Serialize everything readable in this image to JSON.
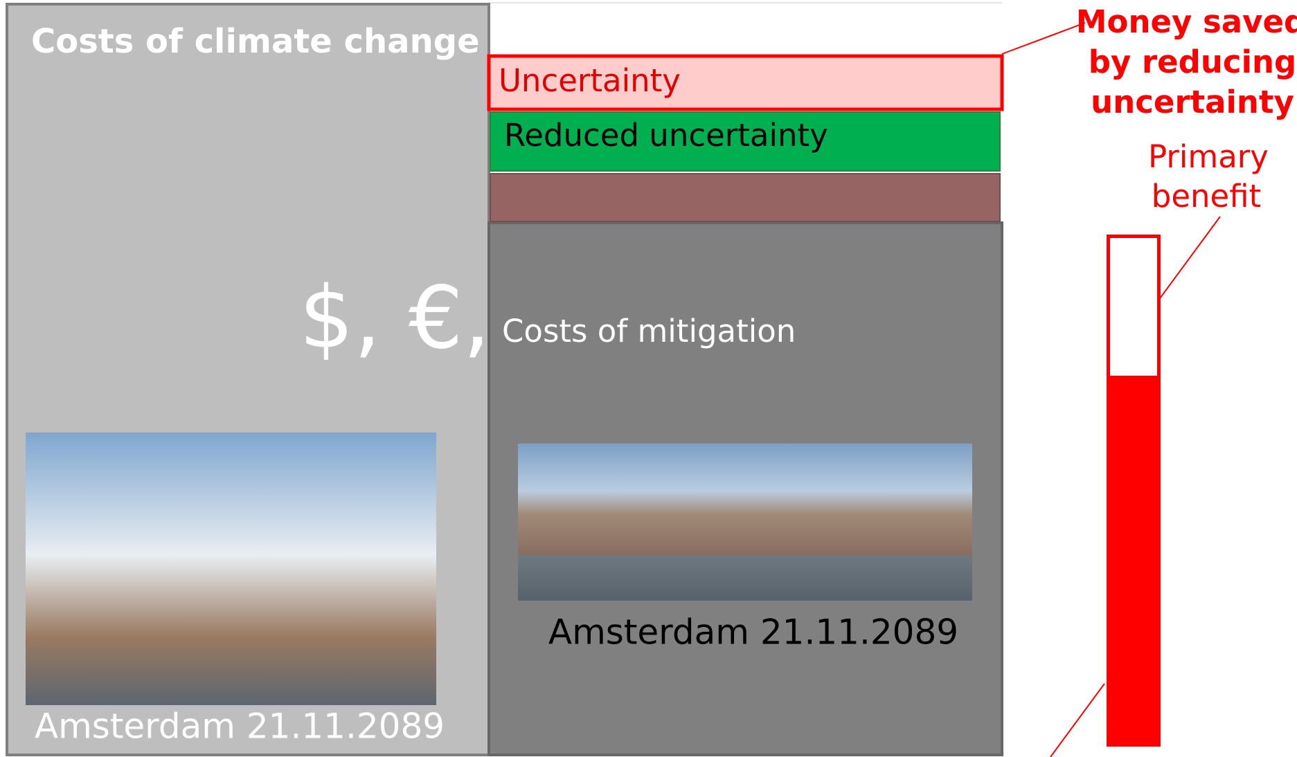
{
  "left_panel": {
    "title": "Costs of climate change",
    "currency": "$, €,",
    "caption": "Amsterdam 21.11.2089"
  },
  "right_panel": {
    "uncertainty": "Uncertainty",
    "reduced_uncertainty": "Reduced uncertainty",
    "title": "Costs of mitigation",
    "caption": "Amsterdam 21.11.2089"
  },
  "annotations": {
    "money_saved": [
      "Money saved",
      "by reducing",
      "uncertainty"
    ],
    "primary_benefit": [
      "Primary",
      "benefit"
    ]
  }
}
